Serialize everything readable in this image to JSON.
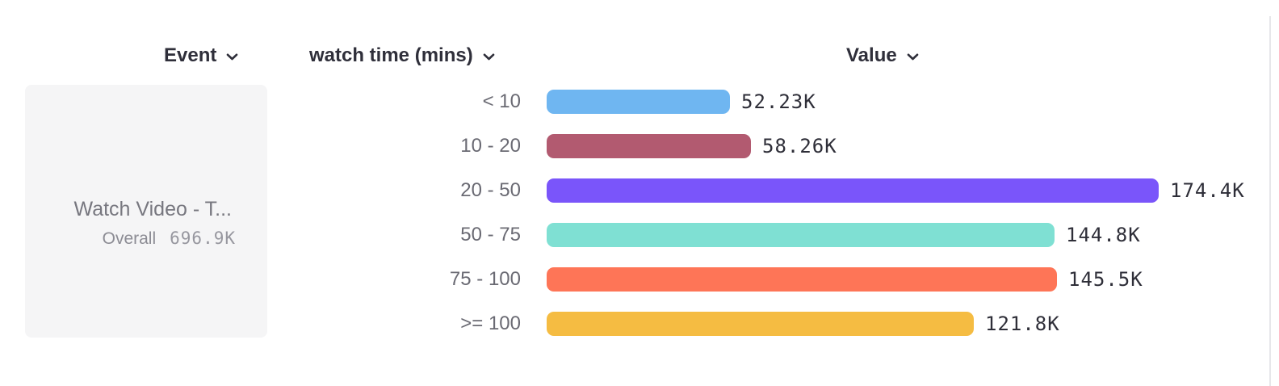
{
  "columns": {
    "event": "Event",
    "breakdown": "watch time (mins)",
    "value": "Value"
  },
  "event_card": {
    "title": "Watch Video - T...",
    "overall_label": "Overall",
    "overall_value": "696.9K"
  },
  "icons": {
    "chevron_down": "⌄"
  },
  "chart_data": {
    "type": "bar",
    "orientation": "horizontal",
    "title": "",
    "xlabel": "Value",
    "ylabel": "watch time (mins)",
    "grid": false,
    "legend": "none",
    "categories": [
      "< 10",
      "10 - 20",
      "20 - 50",
      "50 - 75",
      "75 - 100",
      ">= 100"
    ],
    "values": [
      52230,
      58260,
      174400,
      144800,
      145500,
      121800
    ],
    "value_labels": [
      "52.23K",
      "58.26K",
      "174.4K",
      "144.8K",
      "145.5K",
      "121.8K"
    ],
    "bar_colors": [
      "#6fb6f1",
      "#b25a70",
      "#7a55fa",
      "#7fe0d3",
      "#fe7557",
      "#f5bc42"
    ],
    "xlim": [
      0,
      180000
    ]
  }
}
